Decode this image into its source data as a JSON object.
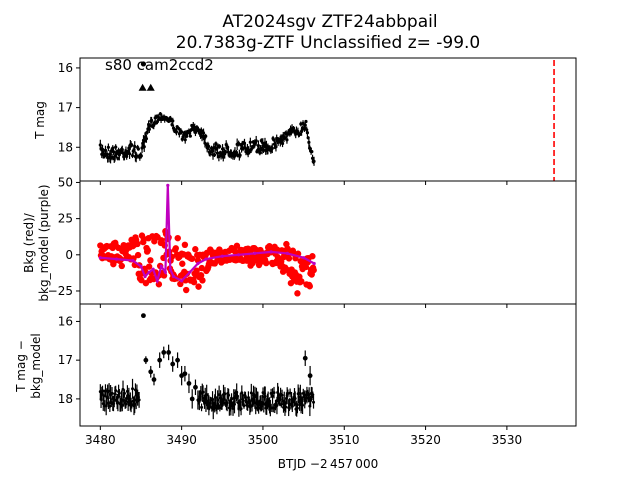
{
  "figure": {
    "title_line1": "AT2024sgv  ZTF24abbpail",
    "title_line2": "20.7383g-ZTF Unclassified z= -99.0",
    "annotation": "s80 cam2ccd2",
    "xlabel": "BTJD −2 457 000"
  },
  "colors": {
    "data": "#000000",
    "background": "#ff0000",
    "model": "#bf00bf",
    "marker_line": "#ff0000"
  },
  "chart_data": [
    {
      "type": "scatter",
      "name": "panel-1",
      "ylabel": "T mag",
      "xlim": [
        3477.5,
        3538.5
      ],
      "ylim": [
        18.85,
        15.75
      ],
      "inverted_y": true,
      "xticks": [
        3480,
        3490,
        3500,
        3510,
        3520,
        3530
      ],
      "yticks": [
        16,
        17,
        18
      ],
      "ytick_labels": [
        "16",
        "17",
        "18"
      ],
      "vline_x": 3535.8,
      "segments": [
        {
          "x": [
            3480.0,
            3482.0,
            3484.0,
            3484.8,
            3485.5,
            3486.0,
            3486.5,
            3487.5,
            3488.5,
            3489.5,
            3490.5,
            3491.5,
            3492.5,
            3493.5,
            3495.0,
            3497.0,
            3499.0,
            3501.0,
            3503.0,
            3504.5,
            3505.3,
            3505.8,
            3506.3
          ],
          "y": [
            18.1,
            18.15,
            18.05,
            18.2,
            17.9,
            17.5,
            17.35,
            17.2,
            17.3,
            17.6,
            17.75,
            17.5,
            17.6,
            18.05,
            18.1,
            18.05,
            18.0,
            17.95,
            17.7,
            17.55,
            17.4,
            18.0,
            18.3
          ],
          "err": [
            0.35,
            0.38,
            0.35,
            0.35,
            0.35,
            0.3,
            0.25,
            0.22,
            0.22,
            0.25,
            0.25,
            0.25,
            0.3,
            0.35,
            0.38,
            0.38,
            0.35,
            0.35,
            0.32,
            0.3,
            0.3,
            0.3,
            0.3
          ]
        }
      ],
      "points": [
        {
          "x": 3485.3,
          "y": 15.9
        }
      ],
      "triangles": [
        {
          "x": 3485.2,
          "y": 16.5
        },
        {
          "x": 3486.2,
          "y": 16.5
        }
      ]
    },
    {
      "type": "scatter",
      "name": "panel-2",
      "ylabel_line1": "Bkg (red)/",
      "ylabel_line2": "bkg_model (purple)",
      "xlim": [
        3477.5,
        3538.5
      ],
      "ylim": [
        -34,
        51
      ],
      "yticks": [
        50,
        25,
        0,
        -25
      ],
      "ytick_labels": [
        "50",
        "25",
        "0",
        "−25"
      ],
      "background": {
        "x": [
          3480.0,
          3482.0,
          3484.0,
          3485.0,
          3485.8,
          3486.5,
          3487.3,
          3488.0,
          3488.8,
          3489.5,
          3490.5,
          3491.5,
          3492.5,
          3494.0,
          3496.0,
          3498.0,
          3500.0,
          3502.0,
          3503.5,
          3504.5,
          3505.5,
          3506.3
        ],
        "lo": [
          -5,
          -8,
          -10,
          -28,
          -30,
          -25,
          -28,
          -15,
          -22,
          -28,
          -28,
          -25,
          -20,
          -8,
          -6,
          -8,
          -8,
          -10,
          -22,
          -30,
          -28,
          -10
        ],
        "hi": [
          8,
          10,
          12,
          18,
          25,
          26,
          20,
          25,
          15,
          12,
          8,
          8,
          5,
          5,
          6,
          8,
          6,
          8,
          10,
          8,
          6,
          5
        ]
      },
      "model": {
        "x": [
          3480.0,
          3482.0,
          3484.0,
          3485.0,
          3485.5,
          3486.0,
          3486.5,
          3487.0,
          3487.5,
          3488.0,
          3488.3,
          3488.6,
          3489.0,
          3490.0,
          3491.0,
          3492.0,
          3493.0,
          3495.0,
          3497.0,
          3499.0,
          3501.0,
          3503.0,
          3505.0,
          3506.3
        ],
        "y": [
          -2,
          -3,
          -4,
          -8,
          -15,
          -12,
          -10,
          -18,
          -8,
          -12,
          48,
          -10,
          -15,
          -18,
          -12,
          -6,
          -3,
          -1,
          0,
          1,
          2,
          1,
          -2,
          -6
        ]
      }
    },
    {
      "type": "scatter",
      "name": "panel-3",
      "ylabel_line1": "T mag −",
      "ylabel_line2": "bkg_model",
      "xlim": [
        3477.5,
        3538.5
      ],
      "ylim": [
        18.7,
        15.55
      ],
      "inverted_y": true,
      "yticks": [
        16,
        17,
        18
      ],
      "ytick_labels": [
        "16",
        "17",
        "18"
      ],
      "dense_segments": [
        {
          "x0": 3480.0,
          "x1": 3484.8,
          "center": 17.95,
          "spread": 0.5
        },
        {
          "x0": 3492.0,
          "x1": 3506.3,
          "center": 18.05,
          "spread": 0.45
        }
      ],
      "points": [
        {
          "x": 3485.3,
          "y": 15.85,
          "err": 0.05
        },
        {
          "x": 3485.6,
          "y": 17.0,
          "err": 0.1
        },
        {
          "x": 3486.2,
          "y": 17.3,
          "err": 0.15
        },
        {
          "x": 3486.6,
          "y": 17.5,
          "err": 0.15
        },
        {
          "x": 3487.3,
          "y": 17.0,
          "err": 0.2
        },
        {
          "x": 3487.8,
          "y": 16.8,
          "err": 0.15
        },
        {
          "x": 3488.4,
          "y": 16.8,
          "err": 0.2
        },
        {
          "x": 3488.9,
          "y": 17.1,
          "err": 0.2
        },
        {
          "x": 3489.5,
          "y": 17.0,
          "err": 0.2
        },
        {
          "x": 3490.0,
          "y": 17.4,
          "err": 0.25
        },
        {
          "x": 3490.4,
          "y": 17.35,
          "err": 0.2
        },
        {
          "x": 3490.9,
          "y": 17.6,
          "err": 0.25
        },
        {
          "x": 3491.3,
          "y": 18.0,
          "err": 0.25
        },
        {
          "x": 3491.7,
          "y": 17.7,
          "err": 0.2
        },
        {
          "x": 3505.2,
          "y": 16.95,
          "err": 0.2
        },
        {
          "x": 3505.8,
          "y": 17.4,
          "err": 0.25
        }
      ]
    }
  ]
}
